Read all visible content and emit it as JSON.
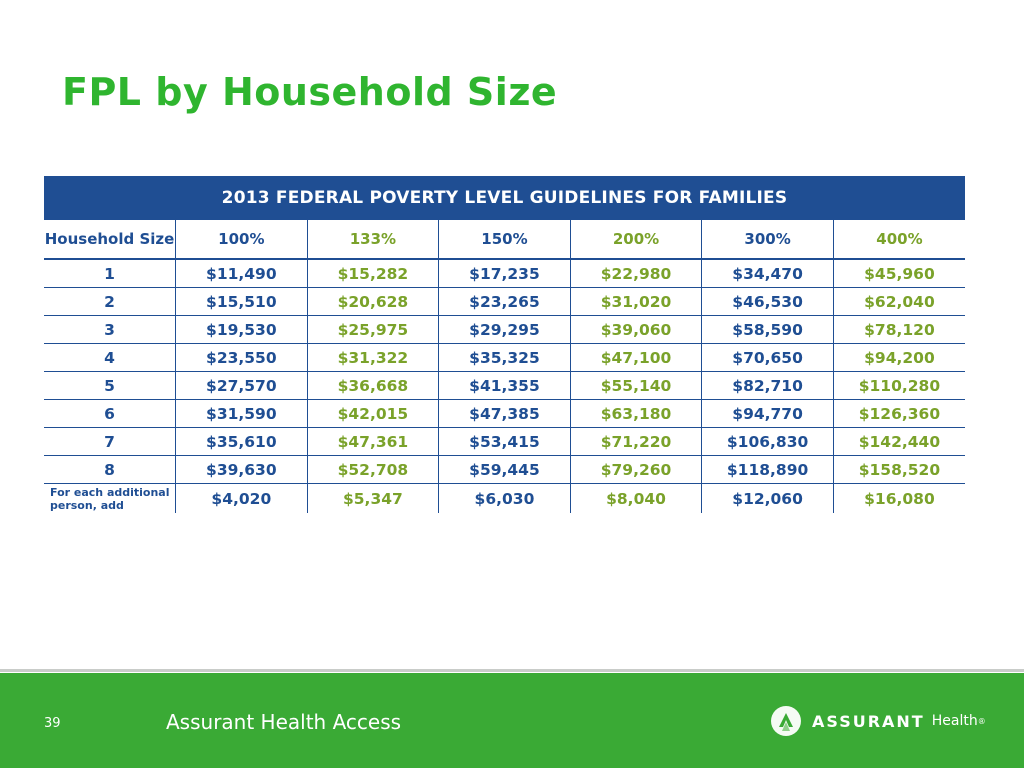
{
  "slide": {
    "title": "FPL by Household Size"
  },
  "table": {
    "banner": "2013 FEDERAL POVERTY LEVEL GUIDELINES FOR FAMILIES",
    "headers": [
      "Household Size",
      "100%",
      "133%",
      "150%",
      "200%",
      "300%",
      "400%"
    ],
    "rows": [
      [
        "1",
        "$11,490",
        "$15,282",
        "$17,235",
        "$22,980",
        "$34,470",
        "$45,960"
      ],
      [
        "2",
        "$15,510",
        "$20,628",
        "$23,265",
        "$31,020",
        "$46,530",
        "$62,040"
      ],
      [
        "3",
        "$19,530",
        "$25,975",
        "$29,295",
        "$39,060",
        "$58,590",
        "$78,120"
      ],
      [
        "4",
        "$23,550",
        "$31,322",
        "$35,325",
        "$47,100",
        "$70,650",
        "$94,200"
      ],
      [
        "5",
        "$27,570",
        "$36,668",
        "$41,355",
        "$55,140",
        "$82,710",
        "$110,280"
      ],
      [
        "6",
        "$31,590",
        "$42,015",
        "$47,385",
        "$63,180",
        "$94,770",
        "$126,360"
      ],
      [
        "7",
        "$35,610",
        "$47,361",
        "$53,415",
        "$71,220",
        "$106,830",
        "$142,440"
      ],
      [
        "8",
        "$39,630",
        "$52,708",
        "$59,445",
        "$79,260",
        "$118,890",
        "$158,520"
      ],
      [
        "For each additional person, add",
        "$4,020",
        "$5,347",
        "$6,030",
        "$8,040",
        "$12,060",
        "$16,080"
      ]
    ]
  },
  "footer": {
    "page_number": "39",
    "text": "Assurant Health Access",
    "logo_word": "ASSURANT",
    "logo_health": "Health",
    "logo_reg": "®"
  },
  "colors": {
    "title_green": "#2fb52f",
    "banner_blue": "#1f4e93",
    "value_green": "#7aa22a",
    "footer_green": "#3aaa35"
  },
  "icons": {
    "logo": "assurant-logo-icon"
  }
}
